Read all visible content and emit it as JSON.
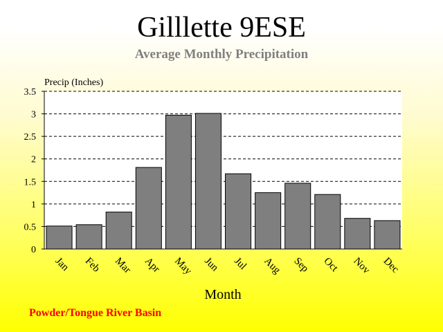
{
  "header": {
    "title": "Gilllette 9ESE",
    "subtitle": "Average Monthly Precipitation"
  },
  "footer": {
    "basin": "Powder/Tongue River Basin"
  },
  "colors": {
    "bar_fill": "#7f7f7f",
    "bar_stroke": "#000000",
    "footer_text": "#ff0000",
    "subtitle_text": "#808080"
  },
  "chart_data": {
    "type": "bar",
    "ylabel": "Precip (Inches)",
    "xlabel": "Month",
    "ylim": [
      0,
      3.5
    ],
    "yticks": [
      "0",
      "0.5",
      "1",
      "1.5",
      "2",
      "2.5",
      "3",
      "3.5"
    ],
    "ytick_values": [
      0,
      0.5,
      1,
      1.5,
      2,
      2.5,
      3,
      3.5
    ],
    "grid": "horizontal dashed",
    "categories": [
      "Jan",
      "Feb",
      "Mar",
      "Apr",
      "May",
      "Jun",
      "Jul",
      "Aug",
      "Sep",
      "Oct",
      "Nov",
      "Dec"
    ],
    "values": [
      0.51,
      0.54,
      0.82,
      1.81,
      2.97,
      3.01,
      1.67,
      1.25,
      1.46,
      1.21,
      0.68,
      0.63
    ]
  }
}
